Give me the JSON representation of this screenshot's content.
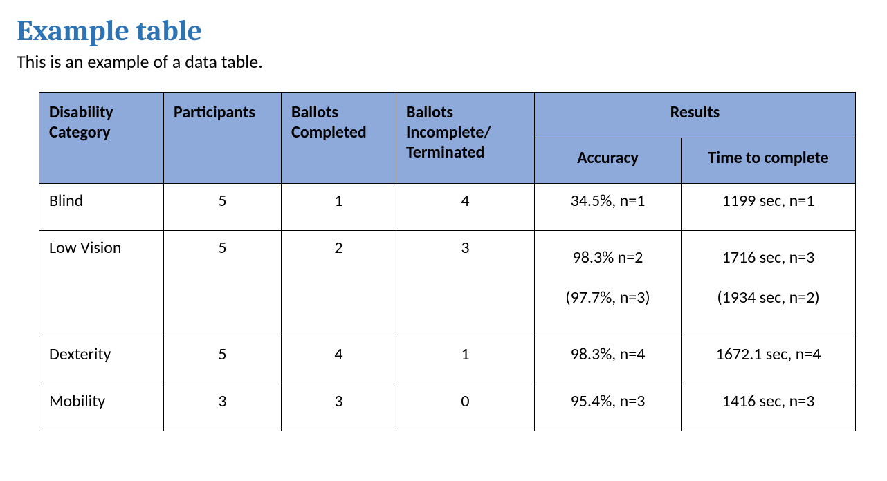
{
  "heading": "Example table",
  "subtitle": "This is an example of a data table.",
  "table": {
    "header_bg": "#8eaadb",
    "border_color": "#000000",
    "heading_color": "#2e74b5",
    "text_color": "#000000",
    "font_size_heading": 42,
    "font_size_body": 24,
    "columns": {
      "disability_category": "Disability Category",
      "participants": "Participants",
      "ballots_completed": "Ballots Completed",
      "ballots_incomplete": "Ballots Incomplete/ Terminated",
      "results": "Results",
      "accuracy": "Accuracy",
      "time_to_complete": "Time to complete"
    },
    "rows": [
      {
        "category": "Blind",
        "participants": "5",
        "completed": "1",
        "incomplete": "4",
        "accuracy": "34.5%, n=1",
        "time": "1199 sec, n=1"
      },
      {
        "category": "Low Vision",
        "participants": "5",
        "completed": "2",
        "incomplete": "3",
        "accuracy": "98.3% n=2\n(97.7%, n=3)",
        "time": "1716 sec, n=3\n(1934 sec, n=2)"
      },
      {
        "category": "Dexterity",
        "participants": "5",
        "completed": "4",
        "incomplete": "1",
        "accuracy": "98.3%, n=4",
        "time": "1672.1 sec, n=4"
      },
      {
        "category": "Mobility",
        "participants": "3",
        "completed": "3",
        "incomplete": "0",
        "accuracy": "95.4%, n=3",
        "time": "1416 sec, n=3"
      }
    ]
  }
}
